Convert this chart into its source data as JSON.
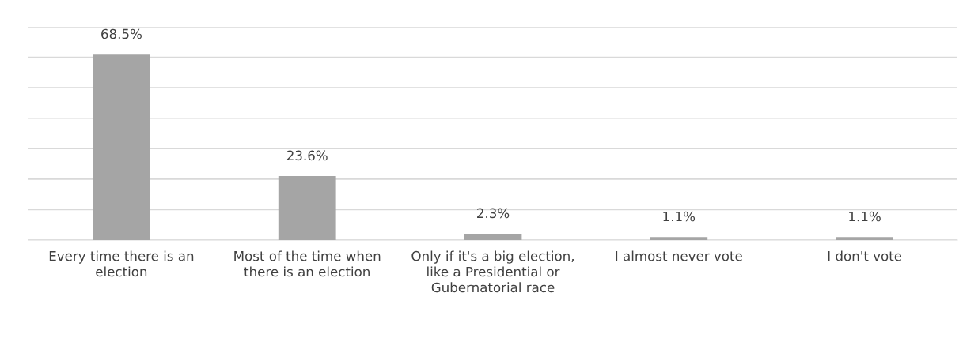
{
  "chart_data": {
    "type": "bar",
    "categories": [
      "Every time there is an election",
      "Most of the time when there is an election",
      "Only if it's a big election, like a Presidential or Gubernatorial race",
      "I almost never vote",
      "I don't vote"
    ],
    "values": [
      68.5,
      23.6,
      2.3,
      1.1,
      1.1
    ],
    "value_labels": [
      "68.5%",
      "23.6%",
      "2.3%",
      "1.1%",
      "1.1%"
    ],
    "color": "#a5a5a5",
    "ylim": [
      0,
      78.75
    ],
    "yticks": [
      {
        "value": 0,
        "label": null
      },
      {
        "value": 11.25,
        "label": null
      },
      {
        "value": 22.5,
        "label": null
      },
      {
        "value": 33.75,
        "label": null
      },
      {
        "value": 45,
        "label": null
      },
      {
        "value": 56.25,
        "label": null
      },
      {
        "value": 67.5,
        "label": null
      },
      {
        "value": 78.75,
        "label": null
      }
    ],
    "grid": "y",
    "tick_labels": "x"
  }
}
